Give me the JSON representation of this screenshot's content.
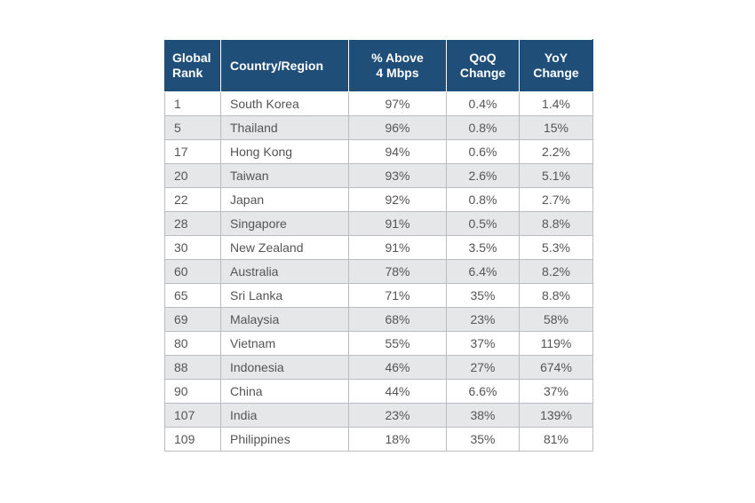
{
  "table": {
    "headers": {
      "rank": [
        "Global",
        "Rank"
      ],
      "country": [
        "Country/Region"
      ],
      "above": [
        "% Above",
        "4 Mbps"
      ],
      "qoq": [
        "QoQ",
        "Change"
      ],
      "yoy": [
        "YoY",
        "Change"
      ]
    },
    "rows": [
      {
        "rank": "1",
        "country": "South Korea",
        "above": "97%",
        "qoq": "0.4%",
        "yoy": "1.4%"
      },
      {
        "rank": "5",
        "country": "Thailand",
        "above": "96%",
        "qoq": "0.8%",
        "yoy": "15%"
      },
      {
        "rank": "17",
        "country": "Hong Kong",
        "above": "94%",
        "qoq": "0.6%",
        "yoy": "2.2%"
      },
      {
        "rank": "20",
        "country": "Taiwan",
        "above": "93%",
        "qoq": "2.6%",
        "yoy": "5.1%"
      },
      {
        "rank": "22",
        "country": "Japan",
        "above": "92%",
        "qoq": "0.8%",
        "yoy": "2.7%"
      },
      {
        "rank": "28",
        "country": "Singapore",
        "above": "91%",
        "qoq": "0.5%",
        "yoy": "8.8%"
      },
      {
        "rank": "30",
        "country": "New Zealand",
        "above": "91%",
        "qoq": "3.5%",
        "yoy": "5.3%"
      },
      {
        "rank": "60",
        "country": "Australia",
        "above": "78%",
        "qoq": "6.4%",
        "yoy": "8.2%"
      },
      {
        "rank": "65",
        "country": "Sri Lanka",
        "above": "71%",
        "qoq": "35%",
        "yoy": "8.8%"
      },
      {
        "rank": "69",
        "country": "Malaysia",
        "above": "68%",
        "qoq": "23%",
        "yoy": "58%"
      },
      {
        "rank": "80",
        "country": "Vietnam",
        "above": "55%",
        "qoq": "37%",
        "yoy": "119%"
      },
      {
        "rank": "88",
        "country": "Indonesia",
        "above": "46%",
        "qoq": "27%",
        "yoy": "674%"
      },
      {
        "rank": "90",
        "country": "China",
        "above": "44%",
        "qoq": "6.6%",
        "yoy": "37%"
      },
      {
        "rank": "107",
        "country": "India",
        "above": "23%",
        "qoq": "38%",
        "yoy": "139%"
      },
      {
        "rank": "109",
        "country": "Philippines",
        "above": "18%",
        "qoq": "35%",
        "yoy": "81%"
      }
    ]
  }
}
